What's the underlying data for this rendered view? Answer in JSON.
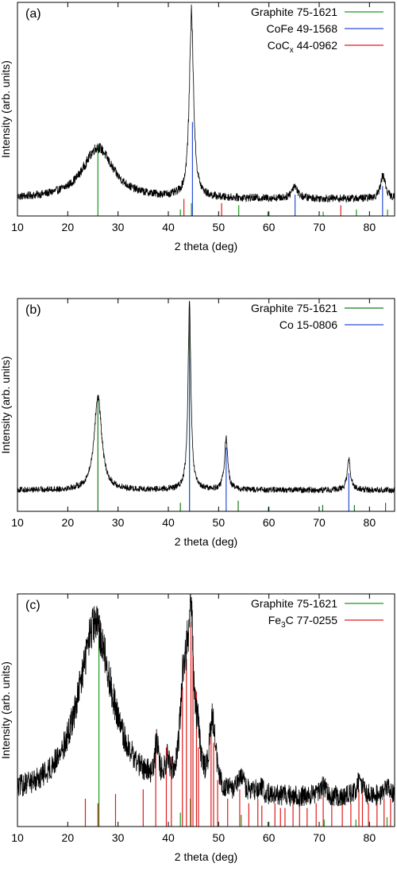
{
  "chart_data": [
    {
      "type": "line",
      "panel_label": "(a)",
      "xlabel": "2 theta (deg)",
      "ylabel": "Intensity (arb. units)",
      "xlim": [
        10,
        85
      ],
      "ylim": [
        0,
        100
      ],
      "y_ticks_shown": false,
      "x_ticks": [
        "10",
        "20",
        "30",
        "40",
        "50",
        "60",
        "70",
        "80"
      ],
      "grid": false,
      "legend_position": "top-right",
      "legend": [
        {
          "label": "Graphite 75-1621",
          "color": "#1a9a1a"
        },
        {
          "label": "CoFe 49-1568",
          "color": "#2b4fd6"
        },
        {
          "label": "CoC",
          "sub": "x",
          "label_rest": " 44-0962",
          "color": "#e01b1b"
        }
      ],
      "pattern": {
        "baseline": 8,
        "noise": 1.6,
        "peaks": [
          {
            "center": 26.0,
            "height": 24,
            "width": 3.6,
            "shape": "lorentz"
          },
          {
            "center": 44.6,
            "height": 86,
            "width": 0.5,
            "shape": "lorentz"
          },
          {
            "center": 65.1,
            "height": 6,
            "width": 0.7,
            "shape": "lorentz"
          },
          {
            "center": 82.7,
            "height": 11,
            "width": 0.6,
            "shape": "lorentz"
          }
        ]
      },
      "reference_lines": [
        {
          "series": "Graphite 75-1621",
          "color": "#1a9a1a",
          "positions": [
            26.0,
            42.4,
            44.6,
            54.0,
            59.8,
            70.8,
            77.4,
            83.6
          ],
          "heights": [
            34,
            3,
            6,
            5,
            2,
            2,
            3,
            3
          ]
        },
        {
          "series": "CoFe 49-1568",
          "color": "#2b4fd6",
          "positions": [
            44.8,
            65.2,
            82.6
          ],
          "heights": [
            44,
            10,
            14
          ]
        },
        {
          "series": "CoC 44-0962",
          "color": "#e01b1b",
          "positions": [
            43.1,
            50.6,
            74.3
          ],
          "heights": [
            8,
            6,
            5
          ]
        }
      ]
    },
    {
      "type": "line",
      "panel_label": "(b)",
      "xlabel": "2 theta (deg)",
      "ylabel": "Intensity (arb. units)",
      "xlim": [
        10,
        85
      ],
      "ylim": [
        0,
        100
      ],
      "y_ticks_shown": false,
      "x_ticks": [
        "10",
        "20",
        "30",
        "40",
        "50",
        "60",
        "70",
        "80"
      ],
      "grid": false,
      "legend_position": "top-right",
      "legend": [
        {
          "label": "Graphite 75-1621",
          "color": "#1a7a1a"
        },
        {
          "label": "Co 15-0806",
          "color": "#2b4fd6"
        }
      ],
      "pattern": {
        "baseline": 10,
        "noise": 1.2,
        "peaks": [
          {
            "center": 26.0,
            "height": 44,
            "width": 0.9,
            "shape": "lorentz"
          },
          {
            "center": 44.2,
            "height": 86,
            "width": 0.35,
            "shape": "lorentz"
          },
          {
            "center": 51.5,
            "height": 24,
            "width": 0.4,
            "shape": "lorentz"
          },
          {
            "center": 75.9,
            "height": 14,
            "width": 0.4,
            "shape": "lorentz"
          }
        ]
      },
      "reference_lines": [
        {
          "series": "Graphite 75-1621",
          "color": "#1a7a1a",
          "positions": [
            26.0,
            42.4,
            44.2,
            53.9,
            59.9,
            70.7,
            77.0,
            83.2
          ],
          "heights": [
            52,
            4,
            96,
            5,
            2,
            3,
            3,
            4
          ]
        },
        {
          "series": "Co 15-0806",
          "color": "#2b4fd6",
          "positions": [
            44.2,
            51.5,
            75.9
          ],
          "heights": [
            72,
            30,
            18
          ]
        }
      ]
    },
    {
      "type": "line",
      "panel_label": "(c)",
      "xlabel": "2 theta (deg)",
      "ylabel": "Intensity (arb. units)",
      "xlim": [
        10,
        85
      ],
      "ylim": [
        0,
        100
      ],
      "y_ticks_shown": false,
      "x_ticks": [
        "10",
        "20",
        "30",
        "40",
        "50",
        "60",
        "70",
        "80"
      ],
      "grid": false,
      "legend_position": "top-right",
      "legend": [
        {
          "label": "Graphite 75-1621",
          "color": "#1a9a1a"
        },
        {
          "label": "Fe",
          "sub": "3",
          "label_rest": "C 77-0255",
          "color": "#e01b1b"
        }
      ],
      "pattern": {
        "baseline": 12,
        "noise": 3.8,
        "peaks": [
          {
            "center": 25.5,
            "height": 74,
            "width": 4.2,
            "shape": "lorentz"
          },
          {
            "center": 37.7,
            "height": 16,
            "width": 0.4,
            "shape": "lorentz"
          },
          {
            "center": 39.8,
            "height": 8,
            "width": 0.5,
            "shape": "lorentz"
          },
          {
            "center": 42.9,
            "height": 36,
            "width": 0.7,
            "shape": "lorentz"
          },
          {
            "center": 43.8,
            "height": 30,
            "width": 0.6,
            "shape": "lorentz"
          },
          {
            "center": 44.6,
            "height": 58,
            "width": 0.6,
            "shape": "lorentz"
          },
          {
            "center": 45.9,
            "height": 16,
            "width": 0.5,
            "shape": "lorentz"
          },
          {
            "center": 48.6,
            "height": 24,
            "width": 0.6,
            "shape": "lorentz"
          },
          {
            "center": 49.2,
            "height": 12,
            "width": 0.5,
            "shape": "lorentz"
          },
          {
            "center": 54.5,
            "height": 6,
            "width": 0.8,
            "shape": "lorentz"
          },
          {
            "center": 58.0,
            "height": 3,
            "width": 1.0,
            "shape": "lorentz"
          },
          {
            "center": 70.8,
            "height": 4,
            "width": 0.8,
            "shape": "lorentz"
          },
          {
            "center": 78.0,
            "height": 7,
            "width": 0.8,
            "shape": "lorentz"
          },
          {
            "center": 83.6,
            "height": 5,
            "width": 0.8,
            "shape": "lorentz"
          }
        ]
      },
      "reference_lines": [
        {
          "series": "Graphite 75-1621",
          "color": "#1a9a1a",
          "positions": [
            26.2,
            42.4,
            44.4,
            54.5,
            59.8,
            71.0,
            77.3,
            83.5
          ],
          "heights": [
            82,
            6,
            12,
            5,
            2,
            3,
            3,
            4
          ]
        },
        {
          "series": "Fe3C 77-0255",
          "color": "#e01b1b",
          "positions": [
            23.5,
            26.0,
            29.5,
            35.0,
            37.5,
            39.6,
            40.6,
            42.8,
            43.6,
            44.5,
            44.9,
            45.6,
            46.0,
            48.5,
            49.0,
            49.8,
            51.8,
            54.2,
            56.0,
            57.8,
            58.6,
            61.2,
            62.3,
            63.2,
            64.8,
            66.1,
            67.6,
            69.4,
            70.8,
            72.5,
            74.6,
            76.3,
            77.9,
            78.6,
            79.8,
            81.5,
            82.9,
            84.2
          ],
          "heights": [
            12,
            10,
            14,
            16,
            40,
            34,
            30,
            60,
            72,
            88,
            82,
            58,
            34,
            42,
            36,
            20,
            12,
            16,
            10,
            12,
            9,
            10,
            8,
            8,
            10,
            12,
            8,
            10,
            14,
            12,
            10,
            10,
            16,
            14,
            10,
            14,
            12,
            12
          ]
        }
      ]
    }
  ]
}
